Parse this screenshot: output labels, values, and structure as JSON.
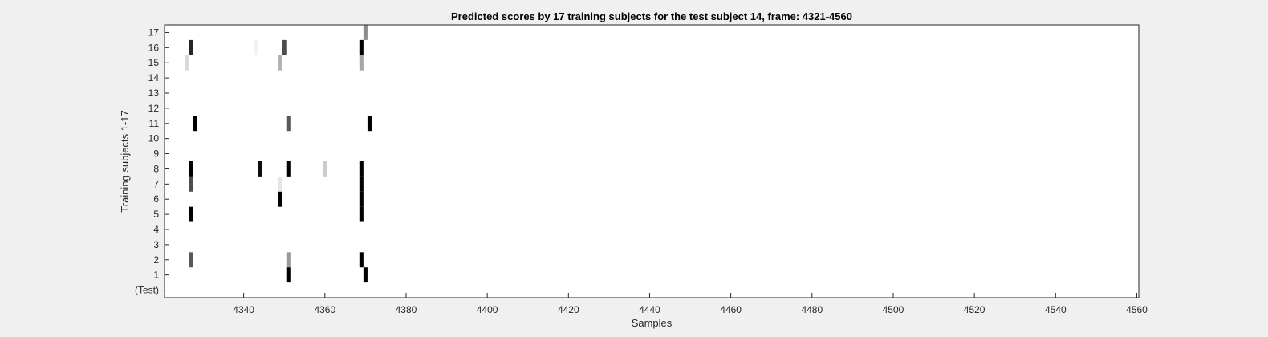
{
  "chart_data": {
    "type": "heatmap",
    "title": "Predicted scores by 17 training subjects for the test subject 14, frame: 4321-4560",
    "xlabel": "Samples",
    "ylabel": "Training subjects 1-17",
    "xlim": [
      4321,
      4560
    ],
    "x_ticks": [
      4340,
      4360,
      4380,
      4400,
      4420,
      4440,
      4460,
      4480,
      4500,
      4520,
      4540,
      4560
    ],
    "y_ticks": [
      "(Test)",
      "1",
      "2",
      "3",
      "4",
      "5",
      "6",
      "7",
      "8",
      "9",
      "10",
      "11",
      "12",
      "13",
      "14",
      "15",
      "16",
      "17"
    ],
    "colormap": "gray (white = 0, black = 1)",
    "grid": false,
    "legend": "none",
    "cells": [
      {
        "row": "17",
        "x": 4370,
        "score": 0.45
      },
      {
        "row": "16",
        "x": 4327,
        "score": 0.85
      },
      {
        "row": "16",
        "x": 4343,
        "score": 0.05
      },
      {
        "row": "16",
        "x": 4350,
        "score": 0.7
      },
      {
        "row": "16",
        "x": 4369,
        "score": 1.0
      },
      {
        "row": "15",
        "x": 4326,
        "score": 0.15
      },
      {
        "row": "15",
        "x": 4349,
        "score": 0.3
      },
      {
        "row": "15",
        "x": 4369,
        "score": 0.35
      },
      {
        "row": "11",
        "x": 4328,
        "score": 1.0
      },
      {
        "row": "11",
        "x": 4351,
        "score": 0.65
      },
      {
        "row": "11",
        "x": 4371,
        "score": 1.0
      },
      {
        "row": "8",
        "x": 4327,
        "score": 1.0
      },
      {
        "row": "8",
        "x": 4344,
        "score": 0.95
      },
      {
        "row": "8",
        "x": 4351,
        "score": 1.0
      },
      {
        "row": "8",
        "x": 4360,
        "score": 0.2
      },
      {
        "row": "8",
        "x": 4369,
        "score": 1.0
      },
      {
        "row": "7",
        "x": 4327,
        "score": 0.7
      },
      {
        "row": "7",
        "x": 4349,
        "score": 0.1
      },
      {
        "row": "7",
        "x": 4369,
        "score": 1.0
      },
      {
        "row": "6",
        "x": 4349,
        "score": 1.0
      },
      {
        "row": "6",
        "x": 4369,
        "score": 1.0
      },
      {
        "row": "5",
        "x": 4327,
        "score": 1.0
      },
      {
        "row": "5",
        "x": 4369,
        "score": 1.0
      },
      {
        "row": "2",
        "x": 4327,
        "score": 0.65
      },
      {
        "row": "2",
        "x": 4351,
        "score": 0.4
      },
      {
        "row": "2",
        "x": 4369,
        "score": 1.0
      },
      {
        "row": "1",
        "x": 4351,
        "score": 1.0
      },
      {
        "row": "1",
        "x": 4370,
        "score": 1.0
      }
    ]
  }
}
